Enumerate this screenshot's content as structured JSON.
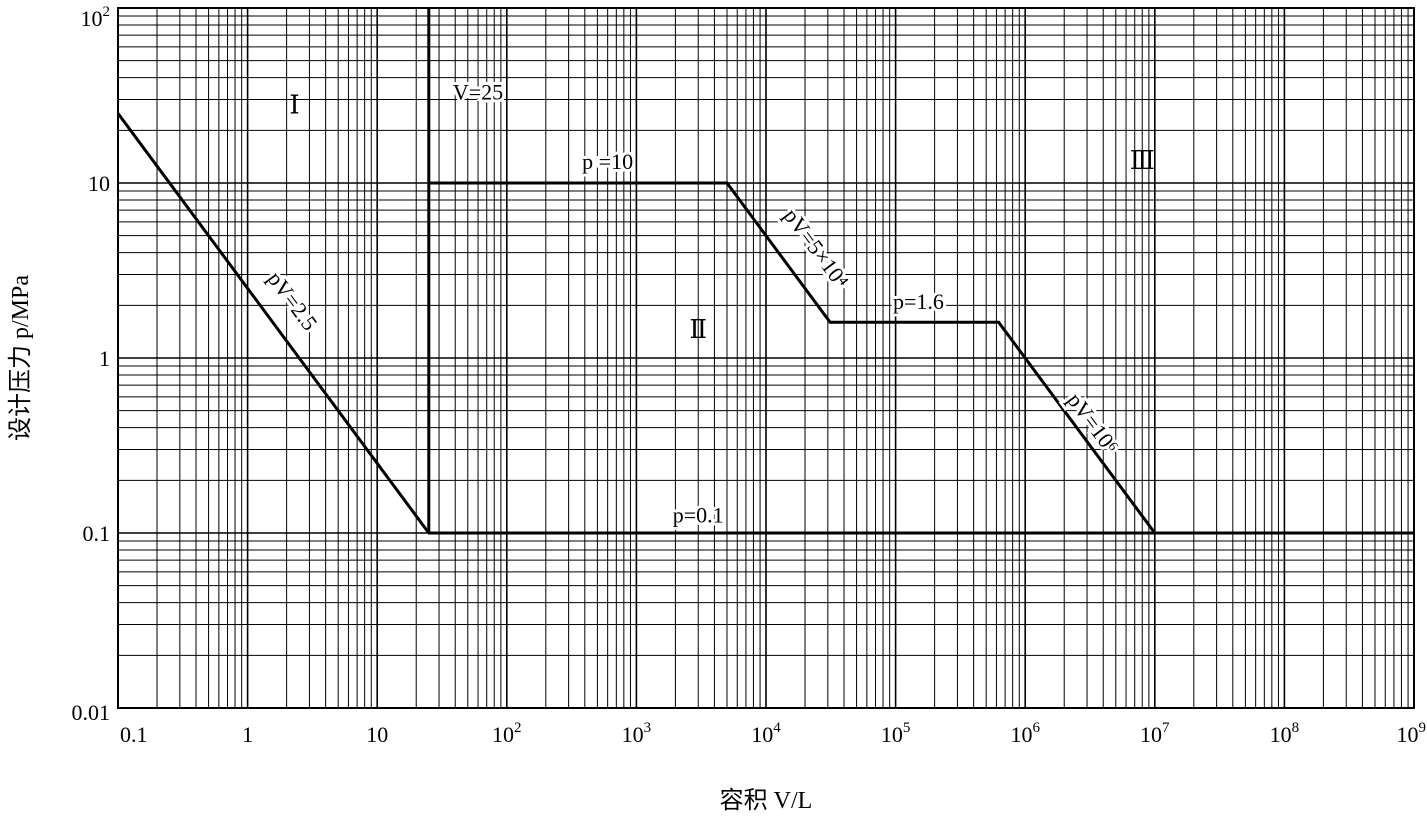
{
  "chart_data": {
    "type": "line",
    "title": "",
    "xlabel": "容积 V/L",
    "ylabel": "设计压力 p/MPa",
    "xscale": "log",
    "yscale": "log",
    "xlim": [
      0.1,
      1000000000
    ],
    "ylim": [
      0.01,
      100
    ],
    "grid": true,
    "x_ticks": [
      {
        "base": "0.1",
        "exp": ""
      },
      {
        "base": "1",
        "exp": ""
      },
      {
        "base": "10",
        "exp": ""
      },
      {
        "base": "10",
        "exp": "2"
      },
      {
        "base": "10",
        "exp": "3"
      },
      {
        "base": "10",
        "exp": "4"
      },
      {
        "base": "10",
        "exp": "5"
      },
      {
        "base": "10",
        "exp": "6"
      },
      {
        "base": "10",
        "exp": "7"
      },
      {
        "base": "10",
        "exp": "8"
      },
      {
        "base": "10",
        "exp": "9"
      }
    ],
    "y_ticks": [
      {
        "base": "0.01",
        "exp": ""
      },
      {
        "base": "0.1",
        "exp": ""
      },
      {
        "base": "1",
        "exp": ""
      },
      {
        "base": "10",
        "exp": ""
      },
      {
        "base": "10",
        "exp": "2"
      }
    ],
    "series": [
      {
        "points": [
          [
            0.1,
            25
          ],
          [
            25,
            0.1
          ],
          [
            10000000,
            0.1
          ],
          [
            1000000000,
            0.1
          ]
        ]
      },
      {
        "points": [
          [
            25,
            0.1
          ],
          [
            25,
            100
          ]
        ]
      },
      {
        "points": [
          [
            25,
            10
          ],
          [
            5000,
            10
          ],
          [
            31250,
            1.6
          ],
          [
            625000,
            1.6
          ],
          [
            10000000,
            0.1
          ]
        ]
      }
    ],
    "annotations": [
      {
        "text": "V=25",
        "x": 60,
        "y": 30
      },
      {
        "text": "p =10",
        "x": 600,
        "y": 12
      },
      {
        "text": "pV=2.5",
        "x": 2,
        "y": 2
      },
      {
        "text": "pV=5×10⁴",
        "x": 22000,
        "y": 4
      },
      {
        "text": "p=1.6",
        "x": 150000,
        "y": 1.9
      },
      {
        "text": "pV=10⁶",
        "x": 3000000,
        "y": 0.4
      },
      {
        "text": "p=0.1",
        "x": 3000,
        "y": 0.115
      }
    ],
    "regions": [
      {
        "label": "Ⅰ",
        "x": 2.3,
        "y": 25
      },
      {
        "label": "Ⅱ",
        "x": 3000,
        "y": 1.3
      },
      {
        "label": "Ⅲ",
        "x": 8000000,
        "y": 12
      }
    ]
  }
}
